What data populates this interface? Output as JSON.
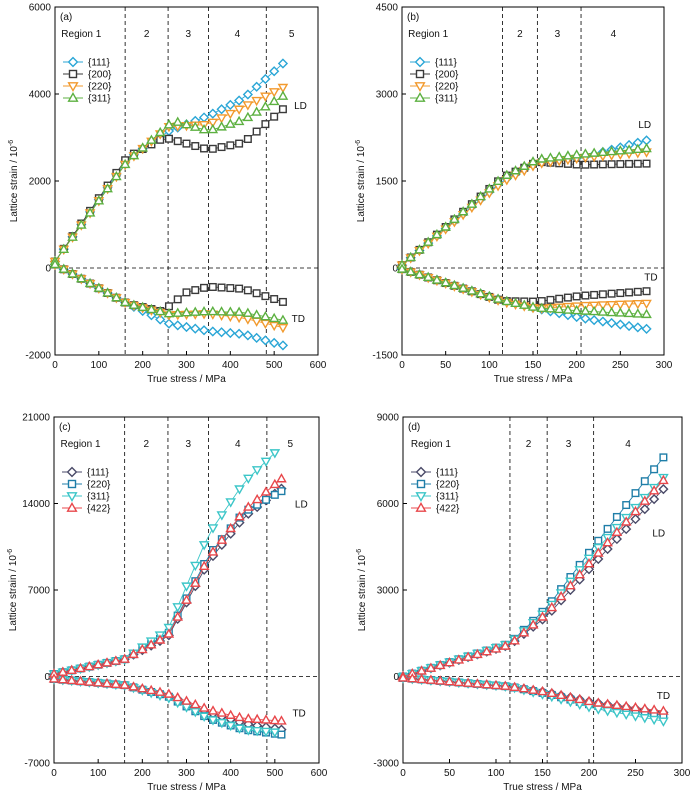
{
  "chart_data": [
    {
      "panel_label": "(a)",
      "type": "scatter",
      "xlabel": "True stress / MPa",
      "ylabel": "Lattice strain / 10",
      "ylabel_sup": "-6",
      "xlim": [
        0,
        600
      ],
      "ylim": [
        -2000,
        6000
      ],
      "xticks": [
        0,
        100,
        200,
        300,
        400,
        500,
        600
      ],
      "yticks": [
        -2000,
        0,
        2000,
        4000,
        6000
      ],
      "region_boundaries": [
        160,
        258,
        350,
        482
      ],
      "region_labels": [
        {
          "text": "Region 1",
          "x": 60
        },
        {
          "text": "2",
          "x": 209
        },
        {
          "text": "3",
          "x": 304
        },
        {
          "text": "4",
          "x": 416
        },
        {
          "text": "5",
          "x": 540
        }
      ],
      "annotations": [
        {
          "text": "LD",
          "x": 560,
          "y": 3750
        },
        {
          "text": "TD",
          "x": 555,
          "y": -1150
        }
      ],
      "legend_position": "upper-left",
      "series": [
        {
          "name": "{111}",
          "marker": "diamond",
          "color": "#2aa6d6",
          "fill": "#ffffff",
          "LD": [
            [
              0,
              150
            ],
            [
              165,
              2500
            ],
            [
              260,
              3150
            ],
            [
              350,
              3500
            ],
            [
              430,
              3900
            ],
            [
              520,
              4700
            ]
          ],
          "TD": [
            [
              0,
              80
            ],
            [
              165,
              -820
            ],
            [
              260,
              -1280
            ],
            [
              350,
              -1450
            ],
            [
              430,
              -1520
            ],
            [
              520,
              -1780
            ]
          ]
        },
        {
          "name": "{200}",
          "marker": "square",
          "color": "#3a3a3a",
          "fill": "#ffffff",
          "LD": [
            [
              0,
              150
            ],
            [
              165,
              2550
            ],
            [
              250,
              3000
            ],
            [
              350,
              2720
            ],
            [
              430,
              2880
            ],
            [
              520,
              3650
            ]
          ],
          "TD": [
            [
              0,
              80
            ],
            [
              165,
              -820
            ],
            [
              245,
              -1000
            ],
            [
              300,
              -560
            ],
            [
              350,
              -430
            ],
            [
              430,
              -480
            ],
            [
              520,
              -780
            ]
          ]
        },
        {
          "name": "{220}",
          "marker": "triangle-down",
          "color": "#f29a2e",
          "fill": "#ffffff",
          "LD": [
            [
              0,
              150
            ],
            [
              165,
              2450
            ],
            [
              260,
              3250
            ],
            [
              350,
              3300
            ],
            [
              430,
              3700
            ],
            [
              520,
              4150
            ]
          ],
          "TD": [
            [
              0,
              80
            ],
            [
              165,
              -820
            ],
            [
              260,
              -1080
            ],
            [
              350,
              -1050
            ],
            [
              430,
              -1150
            ],
            [
              520,
              -1370
            ]
          ]
        },
        {
          "name": "{311}",
          "marker": "triangle-up",
          "color": "#5cb040",
          "fill": "#ffffff",
          "LD": [
            [
              0,
              150
            ],
            [
              165,
              2450
            ],
            [
              270,
              3380
            ],
            [
              350,
              3150
            ],
            [
              430,
              3400
            ],
            [
              520,
              3950
            ]
          ],
          "TD": [
            [
              0,
              80
            ],
            [
              165,
              -820
            ],
            [
              260,
              -1050
            ],
            [
              350,
              -1000
            ],
            [
              430,
              -1020
            ],
            [
              520,
              -1200
            ]
          ]
        }
      ]
    },
    {
      "panel_label": "(b)",
      "type": "scatter",
      "xlabel": "True stress / MPa",
      "ylabel": "Lattice strain / 10",
      "ylabel_sup": "-6",
      "xlim": [
        0,
        300
      ],
      "ylim": [
        -1500,
        4500
      ],
      "xticks": [
        0,
        50,
        100,
        150,
        200,
        250,
        300
      ],
      "yticks": [
        -1500,
        0,
        1500,
        3000,
        4500
      ],
      "region_boundaries": [
        115,
        155,
        205
      ],
      "region_labels": [
        {
          "text": "Region 1",
          "x": 30
        },
        {
          "text": "2",
          "x": 135
        },
        {
          "text": "3",
          "x": 178
        },
        {
          "text": "4",
          "x": 242
        }
      ],
      "annotations": [
        {
          "text": "LD",
          "x": 278,
          "y": 2480
        },
        {
          "text": "TD",
          "x": 285,
          "y": -150
        }
      ],
      "legend_position": "upper-left",
      "series": [
        {
          "name": "{111}",
          "marker": "diamond",
          "color": "#2aa6d6",
          "fill": "#ffffff",
          "LD": [
            [
              0,
              50
            ],
            [
              115,
              1500
            ],
            [
              155,
              1820
            ],
            [
              205,
              1900
            ],
            [
              280,
              2200
            ]
          ],
          "TD": [
            [
              0,
              -20
            ],
            [
              115,
              -560
            ],
            [
              155,
              -700
            ],
            [
              205,
              -860
            ],
            [
              280,
              -1050
            ]
          ]
        },
        {
          "name": "{200}",
          "marker": "square",
          "color": "#3a3a3a",
          "fill": "#ffffff",
          "LD": [
            [
              0,
              50
            ],
            [
              115,
              1560
            ],
            [
              155,
              1830
            ],
            [
              205,
              1780
            ],
            [
              280,
              1800
            ]
          ],
          "TD": [
            [
              0,
              -20
            ],
            [
              115,
              -570
            ],
            [
              155,
              -580
            ],
            [
              205,
              -480
            ],
            [
              280,
              -400
            ]
          ]
        },
        {
          "name": "{220}",
          "marker": "triangle-down",
          "color": "#f29a2e",
          "fill": "#ffffff",
          "LD": [
            [
              0,
              50
            ],
            [
              115,
              1480
            ],
            [
              155,
              1800
            ],
            [
              205,
              1900
            ],
            [
              280,
              2000
            ]
          ],
          "TD": [
            [
              0,
              -20
            ],
            [
              115,
              -580
            ],
            [
              155,
              -700
            ],
            [
              205,
              -650
            ],
            [
              280,
              -610
            ]
          ]
        },
        {
          "name": "{311}",
          "marker": "triangle-up",
          "color": "#5cb040",
          "fill": "#ffffff",
          "LD": [
            [
              0,
              50
            ],
            [
              115,
              1560
            ],
            [
              155,
              1870
            ],
            [
              205,
              1960
            ],
            [
              280,
              2060
            ]
          ],
          "TD": [
            [
              0,
              -20
            ],
            [
              115,
              -560
            ],
            [
              155,
              -690
            ],
            [
              205,
              -740
            ],
            [
              280,
              -800
            ]
          ]
        }
      ]
    },
    {
      "panel_label": "(c)",
      "type": "scatter",
      "xlabel": "True stress / MPa",
      "ylabel": "Lattice strain / 10",
      "ylabel_sup": "-6",
      "xlim": [
        0,
        600
      ],
      "ylim": [
        -7000,
        21000
      ],
      "xticks": [
        0,
        100,
        200,
        300,
        400,
        500,
        600
      ],
      "yticks": [
        -7000,
        0,
        7000,
        14000,
        21000
      ],
      "region_boundaries": [
        160,
        258,
        350,
        482
      ],
      "region_labels": [
        {
          "text": "Region 1",
          "x": 60
        },
        {
          "text": "2",
          "x": 209
        },
        {
          "text": "3",
          "x": 304
        },
        {
          "text": "4",
          "x": 416
        },
        {
          "text": "5",
          "x": 535
        }
      ],
      "annotations": [
        {
          "text": "LD",
          "x": 560,
          "y": 14000
        },
        {
          "text": "TD",
          "x": 555,
          "y": -2900
        }
      ],
      "legend_position": "upper-left",
      "series": [
        {
          "name": "{111}",
          "marker": "diamond",
          "color": "#4a4a68",
          "fill": "#ffffff",
          "LD": [
            [
              0,
              200
            ],
            [
              160,
              1400
            ],
            [
              258,
              3200
            ],
            [
              350,
              9300
            ],
            [
              430,
              12900
            ],
            [
              515,
              15200
            ]
          ],
          "TD": [
            [
              0,
              -200
            ],
            [
              160,
              -700
            ],
            [
              258,
              -1500
            ],
            [
              350,
              -2900
            ],
            [
              430,
              -3800
            ],
            [
              515,
              -4300
            ]
          ]
        },
        {
          "name": "{220}",
          "marker": "square",
          "color": "#1f7ea8",
          "fill": "#ffffff",
          "LD": [
            [
              0,
              200
            ],
            [
              160,
              1400
            ],
            [
              258,
              3400
            ],
            [
              350,
              9800
            ],
            [
              430,
              13300
            ],
            [
              515,
              15000
            ]
          ],
          "TD": [
            [
              0,
              -200
            ],
            [
              160,
              -700
            ],
            [
              258,
              -1600
            ],
            [
              350,
              -3400
            ],
            [
              430,
              -4300
            ],
            [
              515,
              -4700
            ]
          ]
        },
        {
          "name": "{311}",
          "marker": "triangle-down",
          "color": "#3cc6c8",
          "fill": "#ffffff",
          "LD": [
            [
              0,
              200
            ],
            [
              160,
              1400
            ],
            [
              258,
              3800
            ],
            [
              350,
              11500
            ],
            [
              430,
              15700
            ],
            [
              500,
              18100
            ]
          ],
          "TD": [
            [
              0,
              -200
            ],
            [
              160,
              -700
            ],
            [
              258,
              -1700
            ],
            [
              350,
              -3400
            ],
            [
              430,
              -4300
            ],
            [
              500,
              -4500
            ]
          ]
        },
        {
          "name": "{422}",
          "marker": "triangle-up",
          "color": "#e8474b",
          "fill": "#ffffff",
          "LD": [
            [
              0,
              200
            ],
            [
              160,
              1400
            ],
            [
              258,
              3300
            ],
            [
              350,
              9600
            ],
            [
              430,
              13400
            ],
            [
              515,
              16000
            ]
          ],
          "TD": [
            [
              0,
              -200
            ],
            [
              160,
              -700
            ],
            [
              258,
              -1400
            ],
            [
              350,
              -2700
            ],
            [
              430,
              -3400
            ],
            [
              515,
              -3600
            ]
          ]
        }
      ]
    },
    {
      "panel_label": "(d)",
      "type": "scatter",
      "xlabel": "True stress / MPa",
      "ylabel": "Lattice strain / 10",
      "ylabel_sup": "-6",
      "xlim": [
        0,
        300
      ],
      "ylim": [
        -3000,
        9000
      ],
      "xticks": [
        0,
        50,
        100,
        150,
        200,
        250,
        300
      ],
      "yticks": [
        -3000,
        0,
        3000,
        6000,
        9000
      ],
      "region_boundaries": [
        115,
        155,
        205
      ],
      "region_labels": [
        {
          "text": "Region 1",
          "x": 30
        },
        {
          "text": "2",
          "x": 135
        },
        {
          "text": "3",
          "x": 178
        },
        {
          "text": "4",
          "x": 242
        }
      ],
      "annotations": [
        {
          "text": "LD",
          "x": 275,
          "y": 5000
        },
        {
          "text": "TD",
          "x": 280,
          "y": -650
        }
      ],
      "legend_position": "upper-left",
      "series": [
        {
          "name": "{111}",
          "marker": "diamond",
          "color": "#4a4a68",
          "fill": "#ffffff",
          "LD": [
            [
              0,
              0
            ],
            [
              115,
              1100
            ],
            [
              155,
              2100
            ],
            [
              205,
              3900
            ],
            [
              280,
              6500
            ]
          ],
          "TD": [
            [
              0,
              -50
            ],
            [
              115,
              -350
            ],
            [
              155,
              -550
            ],
            [
              205,
              -900
            ],
            [
              280,
              -1250
            ]
          ]
        },
        {
          "name": "{220}",
          "marker": "square",
          "color": "#1f7ea8",
          "fill": "#ffffff",
          "LD": [
            [
              0,
              0
            ],
            [
              115,
              1150
            ],
            [
              155,
              2400
            ],
            [
              205,
              4500
            ],
            [
              280,
              7600
            ]
          ],
          "TD": [
            [
              0,
              -50
            ],
            [
              115,
              -350
            ],
            [
              155,
              -600
            ],
            [
              205,
              -1000
            ],
            [
              280,
              -1350
            ]
          ]
        },
        {
          "name": "{311}",
          "marker": "triangle-down",
          "color": "#3cc6c8",
          "fill": "#ffffff",
          "LD": [
            [
              0,
              0
            ],
            [
              115,
              1150
            ],
            [
              155,
              2300
            ],
            [
              205,
              4300
            ],
            [
              280,
              6900
            ]
          ],
          "TD": [
            [
              0,
              -50
            ],
            [
              115,
              -350
            ],
            [
              155,
              -650
            ],
            [
              205,
              -1100
            ],
            [
              280,
              -1550
            ]
          ]
        },
        {
          "name": "{422}",
          "marker": "triangle-up",
          "color": "#e8474b",
          "fill": "#ffffff",
          "LD": [
            [
              0,
              0
            ],
            [
              115,
              1100
            ],
            [
              155,
              2200
            ],
            [
              205,
              4100
            ],
            [
              280,
              6800
            ]
          ],
          "TD": [
            [
              0,
              -50
            ],
            [
              115,
              -350
            ],
            [
              155,
              -550
            ],
            [
              205,
              -900
            ],
            [
              280,
              -1200
            ]
          ]
        }
      ]
    }
  ]
}
